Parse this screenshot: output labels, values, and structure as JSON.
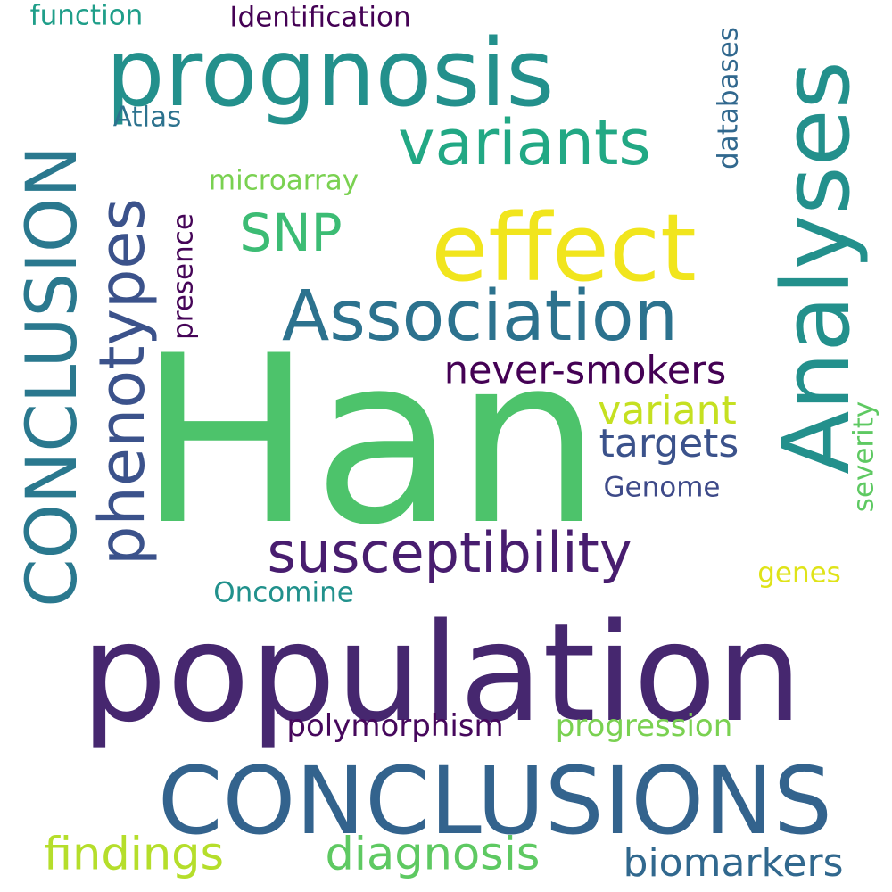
{
  "words": {
    "han": {
      "text": "Han",
      "color": "#4dc36b"
    },
    "population": {
      "text": "population",
      "color": "#46276f"
    },
    "conclusions": {
      "text": "CONCLUSIONS",
      "color": "#33638d"
    },
    "prognosis": {
      "text": "prognosis",
      "color": "#23908c"
    },
    "analyses": {
      "text": "Analyses",
      "color": "#23908c"
    },
    "effect": {
      "text": "effect",
      "color": "#f1e51d"
    },
    "conclusion": {
      "text": "CONCLUSION",
      "color": "#2a788e"
    },
    "association": {
      "text": "Association",
      "color": "#2c728e"
    },
    "phenotypes": {
      "text": "phenotypes",
      "color": "#3b528b"
    },
    "susceptibility": {
      "text": "susceptibility",
      "color": "#481d6f"
    },
    "variants": {
      "text": "variants",
      "color": "#22a884"
    },
    "never_smokers": {
      "text": "never-smokers",
      "color": "#440154"
    },
    "biomarkers": {
      "text": "biomarkers",
      "color": "#31688e"
    },
    "findings": {
      "text": "findings",
      "color": "#b5de2b"
    },
    "diagnosis": {
      "text": "diagnosis",
      "color": "#5ec962"
    },
    "snp": {
      "text": "SNP",
      "color": "#3cbc74"
    },
    "variant": {
      "text": "variant",
      "color": "#c5e021"
    },
    "targets": {
      "text": "targets",
      "color": "#3b528b"
    },
    "polymorphism": {
      "text": "polymorphism",
      "color": "#46085c"
    },
    "progression": {
      "text": "progression",
      "color": "#7ad151"
    },
    "identification": {
      "text": "Identification",
      "color": "#440154"
    },
    "function": {
      "text": "function",
      "color": "#1f9e89"
    },
    "genome": {
      "text": "Genome",
      "color": "#3e4a89"
    },
    "severity": {
      "text": "severity",
      "color": "#5ec962"
    },
    "oncomine": {
      "text": "Oncomine",
      "color": "#21918c"
    },
    "atlas": {
      "text": "Atlas",
      "color": "#2c728e"
    },
    "microarray": {
      "text": "microarray",
      "color": "#7ad151"
    },
    "presence": {
      "text": "presence",
      "color": "#450457"
    },
    "databases": {
      "text": "databases",
      "color": "#31688e"
    },
    "genes": {
      "text": "genes",
      "color": "#dfe318"
    }
  }
}
